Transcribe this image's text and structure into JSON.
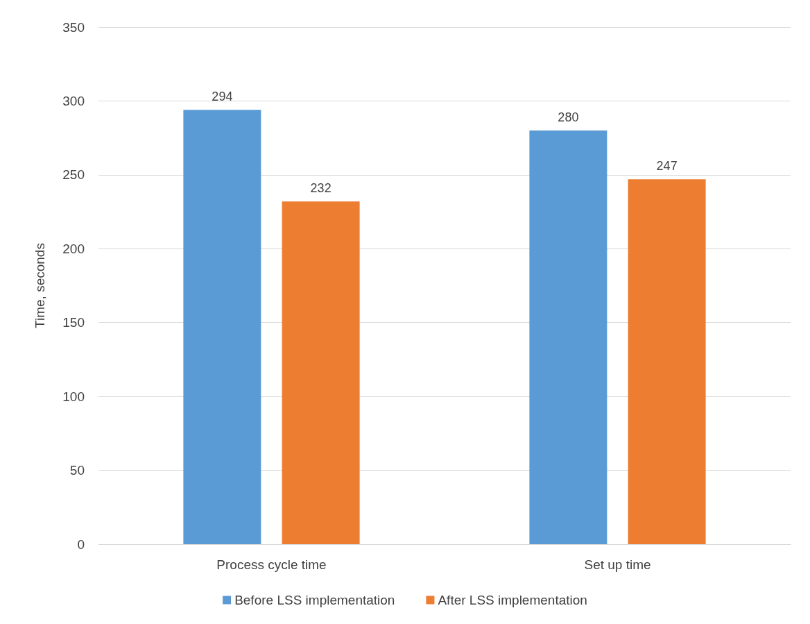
{
  "chart_data": {
    "type": "bar",
    "ylabel": "Time, seconds",
    "categories": [
      "Process cycle time",
      "Set up time"
    ],
    "series": [
      {
        "name": "Before LSS implementation",
        "color": "#5b9bd5",
        "values": [
          294,
          280
        ]
      },
      {
        "name": "After LSS implementation",
        "color": "#ed7d31",
        "values": [
          232,
          247
        ]
      }
    ],
    "ylim": [
      0,
      350
    ],
    "yticks": [
      0,
      50,
      100,
      150,
      200,
      250,
      300,
      350
    ],
    "grid": "y",
    "legend": "bottom",
    "data_labels": true
  }
}
